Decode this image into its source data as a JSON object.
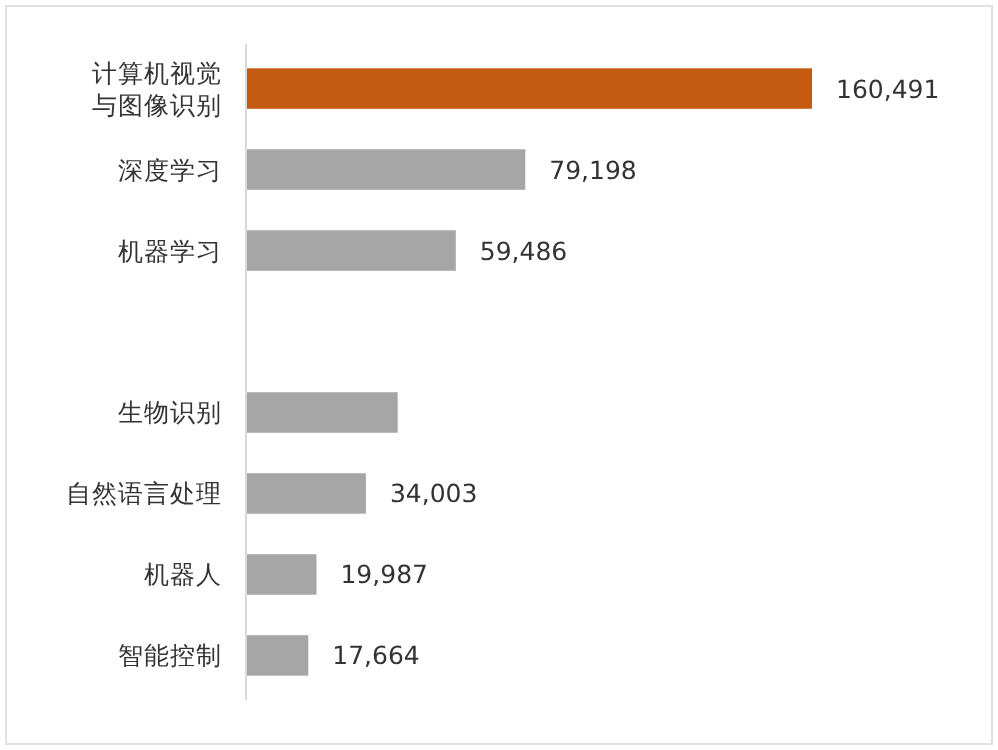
{
  "chart_data": {
    "type": "bar",
    "orientation": "horizontal",
    "categories": [
      "计算机视觉与图像识别",
      "深度学习",
      "机器学习",
      null,
      "生物识别",
      "自然语言处理",
      "机器人",
      "智能控制"
    ],
    "values": [
      160491,
      79198,
      59486,
      null,
      43000,
      34003,
      19987,
      17664
    ],
    "value_labels": [
      "160,491",
      "79,198",
      "59,486",
      null,
      null,
      "34,003",
      "19,987",
      "17,664"
    ],
    "colors": [
      "#c55a11",
      "#a6a6a6",
      "#a6a6a6",
      null,
      "#a6a6a6",
      "#a6a6a6",
      "#a6a6a6",
      "#a6a6a6"
    ]
  }
}
